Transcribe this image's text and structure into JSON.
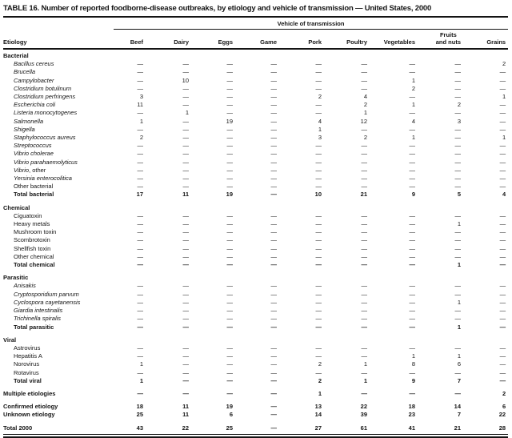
{
  "title": "TABLE 16. Number of reported foodborne-disease outbreaks, by etiology and vehicle of transmission — United States, 2000",
  "table": {
    "group_header": "Vehicle of transmission",
    "row_header": "Etiology",
    "columns": [
      "Beef",
      "Dairy",
      "Eggs",
      "Game",
      "Pork",
      "Poultry",
      "Vegetables",
      "Fruits\nand nuts",
      "Grains"
    ],
    "dash": "—",
    "rows": [
      {
        "type": "section",
        "label": "Bacterial"
      },
      {
        "type": "item",
        "italic": true,
        "label": "Bacillus cereus",
        "values": [
          "—",
          "—",
          "—",
          "—",
          "—",
          "—",
          "—",
          "—",
          "2"
        ]
      },
      {
        "type": "item",
        "italic": true,
        "label": "Brucella",
        "values": [
          "—",
          "—",
          "—",
          "—",
          "—",
          "—",
          "—",
          "—",
          "—"
        ]
      },
      {
        "type": "item",
        "italic": true,
        "label": "Campylobacter",
        "values": [
          "—",
          "10",
          "—",
          "—",
          "—",
          "—",
          "1",
          "—",
          "—"
        ]
      },
      {
        "type": "item",
        "italic": true,
        "label": "Clostridium botulinum",
        "values": [
          "—",
          "—",
          "—",
          "—",
          "—",
          "—",
          "2",
          "—",
          "—"
        ]
      },
      {
        "type": "item",
        "italic": true,
        "label": "Clostridium perfringens",
        "values": [
          "3",
          "—",
          "—",
          "—",
          "2",
          "4",
          "—",
          "—",
          "1"
        ]
      },
      {
        "type": "item",
        "italic": true,
        "label": "Escherichia coli",
        "values": [
          "11",
          "—",
          "—",
          "—",
          "—",
          "2",
          "1",
          "2",
          "—"
        ]
      },
      {
        "type": "item",
        "italic": true,
        "label": "Listeria monocytogenes",
        "values": [
          "—",
          "1",
          "—",
          "—",
          "—",
          "1",
          "—",
          "—",
          "—"
        ]
      },
      {
        "type": "item",
        "italic": true,
        "label": "Salmonella",
        "values": [
          "1",
          "—",
          "19",
          "—",
          "4",
          "12",
          "4",
          "3",
          "—"
        ]
      },
      {
        "type": "item",
        "italic": true,
        "label": "Shigella",
        "values": [
          "—",
          "—",
          "—",
          "—",
          "1",
          "—",
          "—",
          "—",
          "—"
        ]
      },
      {
        "type": "item",
        "italic": true,
        "label": "Staphylococcus aureus",
        "values": [
          "2",
          "—",
          "—",
          "—",
          "3",
          "2",
          "1",
          "—",
          "1"
        ]
      },
      {
        "type": "item",
        "italic": true,
        "label": "Streptococcus",
        "values": [
          "—",
          "—",
          "—",
          "—",
          "—",
          "—",
          "—",
          "—",
          "—"
        ]
      },
      {
        "type": "item",
        "italic": true,
        "label": "Vibrio cholerae",
        "values": [
          "—",
          "—",
          "—",
          "—",
          "—",
          "—",
          "—",
          "—",
          "—"
        ]
      },
      {
        "type": "item",
        "italic": true,
        "label": "Vibrio parahaemolyticus",
        "values": [
          "—",
          "—",
          "—",
          "—",
          "—",
          "—",
          "—",
          "—",
          "—"
        ]
      },
      {
        "type": "item",
        "italic": true,
        "label": "Vibrio",
        "suffix": ", other",
        "values": [
          "—",
          "—",
          "—",
          "—",
          "—",
          "—",
          "—",
          "—",
          "—"
        ]
      },
      {
        "type": "item",
        "italic": true,
        "label": "Yersinia enterocolitica",
        "values": [
          "—",
          "—",
          "—",
          "—",
          "—",
          "—",
          "—",
          "—",
          "—"
        ]
      },
      {
        "type": "item",
        "italic": false,
        "label": "Other bacterial",
        "values": [
          "—",
          "—",
          "—",
          "—",
          "—",
          "—",
          "—",
          "—",
          "—"
        ]
      },
      {
        "type": "total",
        "label": "Total bacterial",
        "values": [
          "17",
          "11",
          "19",
          "—",
          "10",
          "21",
          "9",
          "5",
          "4"
        ]
      },
      {
        "type": "section",
        "gap": true,
        "label": "Chemical"
      },
      {
        "type": "item",
        "italic": false,
        "label": "Ciguatoxin",
        "values": [
          "—",
          "—",
          "—",
          "—",
          "—",
          "—",
          "—",
          "—",
          "—"
        ]
      },
      {
        "type": "item",
        "italic": false,
        "label": "Heavy metals",
        "values": [
          "—",
          "—",
          "—",
          "—",
          "—",
          "—",
          "—",
          "1",
          "—"
        ]
      },
      {
        "type": "item",
        "italic": false,
        "label": "Mushroom toxin",
        "values": [
          "—",
          "—",
          "—",
          "—",
          "—",
          "—",
          "—",
          "—",
          "—"
        ]
      },
      {
        "type": "item",
        "italic": false,
        "label": "Scombrotoxin",
        "values": [
          "—",
          "—",
          "—",
          "—",
          "—",
          "—",
          "—",
          "—",
          "—"
        ]
      },
      {
        "type": "item",
        "italic": false,
        "label": "Shellfish toxin",
        "values": [
          "—",
          "—",
          "—",
          "—",
          "—",
          "—",
          "—",
          "—",
          "—"
        ]
      },
      {
        "type": "item",
        "italic": false,
        "label": "Other chemical",
        "values": [
          "—",
          "—",
          "—",
          "—",
          "—",
          "—",
          "—",
          "—",
          "—"
        ]
      },
      {
        "type": "total",
        "label": "Total chemical",
        "values": [
          "—",
          "—",
          "—",
          "—",
          "—",
          "—",
          "—",
          "1",
          "—"
        ]
      },
      {
        "type": "section",
        "gap": true,
        "label": "Parasitic"
      },
      {
        "type": "item",
        "italic": true,
        "label": "Anisakis",
        "values": [
          "—",
          "—",
          "—",
          "—",
          "—",
          "—",
          "—",
          "—",
          "—"
        ]
      },
      {
        "type": "item",
        "italic": true,
        "label": "Cryptosporidium parvum",
        "values": [
          "—",
          "—",
          "—",
          "—",
          "—",
          "—",
          "—",
          "—",
          "—"
        ]
      },
      {
        "type": "item",
        "italic": true,
        "label": "Cyclospora cayetanensis",
        "values": [
          "—",
          "—",
          "—",
          "—",
          "—",
          "—",
          "—",
          "1",
          "—"
        ]
      },
      {
        "type": "item",
        "italic": true,
        "label": "Giardia intestinalis",
        "values": [
          "—",
          "—",
          "—",
          "—",
          "—",
          "—",
          "—",
          "—",
          "—"
        ]
      },
      {
        "type": "item",
        "italic": true,
        "label": "Trichinella spiralis",
        "values": [
          "—",
          "—",
          "—",
          "—",
          "—",
          "—",
          "—",
          "—",
          "—"
        ]
      },
      {
        "type": "total",
        "label": "Total parasitic",
        "values": [
          "—",
          "—",
          "—",
          "—",
          "—",
          "—",
          "—",
          "1",
          "—"
        ]
      },
      {
        "type": "section",
        "gap": true,
        "label": "Viral"
      },
      {
        "type": "item",
        "italic": false,
        "label": "Astrovirus",
        "values": [
          "—",
          "—",
          "—",
          "—",
          "—",
          "—",
          "—",
          "—",
          "—"
        ]
      },
      {
        "type": "item",
        "italic": false,
        "label": "Hepatitis A",
        "values": [
          "—",
          "—",
          "—",
          "—",
          "—",
          "—",
          "1",
          "1",
          "—"
        ]
      },
      {
        "type": "item",
        "italic": false,
        "label": "Norovirus",
        "values": [
          "1",
          "—",
          "—",
          "—",
          "2",
          "1",
          "8",
          "6",
          "—"
        ]
      },
      {
        "type": "item",
        "italic": false,
        "label": "Rotavirus",
        "values": [
          "—",
          "—",
          "—",
          "—",
          "—",
          "—",
          "—",
          "—",
          "—"
        ]
      },
      {
        "type": "total",
        "label": "Total viral",
        "values": [
          "1",
          "—",
          "—",
          "—",
          "2",
          "1",
          "9",
          "7",
          "—"
        ]
      },
      {
        "type": "summary",
        "gap": true,
        "label": "Multiple etiologies",
        "values": [
          "—",
          "—",
          "—",
          "—",
          "1",
          "—",
          "—",
          "—",
          "2"
        ]
      },
      {
        "type": "summary",
        "gap": true,
        "label": "Confirmed etiology",
        "values": [
          "18",
          "11",
          "19",
          "—",
          "13",
          "22",
          "18",
          "14",
          "6"
        ]
      },
      {
        "type": "summary",
        "label": "Unknown etiology",
        "values": [
          "25",
          "11",
          "6",
          "—",
          "14",
          "39",
          "23",
          "7",
          "22"
        ]
      },
      {
        "type": "grand",
        "gap": true,
        "label": "Total 2000",
        "values": [
          "43",
          "22",
          "25",
          "—",
          "27",
          "61",
          "41",
          "21",
          "28"
        ]
      }
    ]
  }
}
